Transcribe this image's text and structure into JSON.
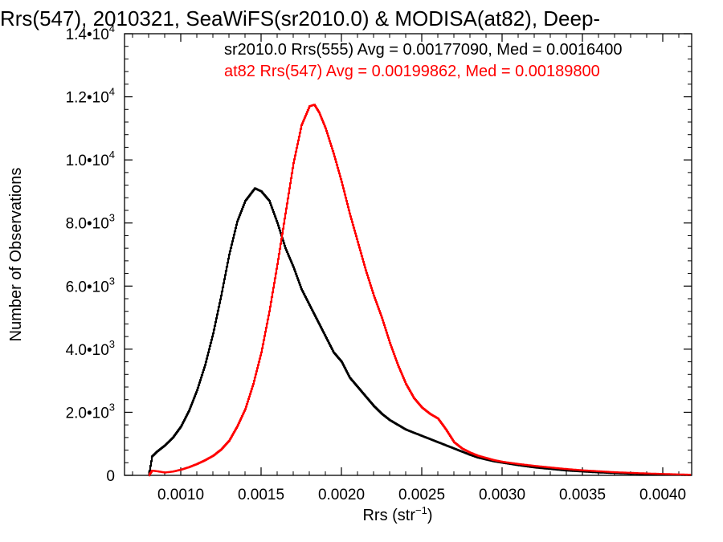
{
  "chart_data": {
    "type": "line",
    "title": "Rrs(547), 2010321, SeaWiFS(sr2010.0) & MODISA(at82), Deep-",
    "xlabel": "Rrs (str",
    "xlabel_sup": "−1",
    "xlabel_close": ")",
    "ylabel": "Number of Observations",
    "xlim": [
      0.00065,
      0.00418
    ],
    "ylim": [
      0,
      14000
    ],
    "xticks": [
      {
        "value": 0.001,
        "label": "0.0010"
      },
      {
        "value": 0.0015,
        "label": "0.0015"
      },
      {
        "value": 0.002,
        "label": "0.0020"
      },
      {
        "value": 0.0025,
        "label": "0.0025"
      },
      {
        "value": 0.003,
        "label": "0.0030"
      },
      {
        "value": 0.0035,
        "label": "0.0035"
      },
      {
        "value": 0.004,
        "label": "0.0040"
      }
    ],
    "yticks": [
      {
        "value": 0,
        "label": "0",
        "exp": ""
      },
      {
        "value": 2000,
        "label": "2.0•10",
        "exp": "3"
      },
      {
        "value": 4000,
        "label": "4.0•10",
        "exp": "3"
      },
      {
        "value": 6000,
        "label": "6.0•10",
        "exp": "3"
      },
      {
        "value": 8000,
        "label": "8.0•10",
        "exp": "3"
      },
      {
        "value": 10000,
        "label": "1.0•10",
        "exp": "4"
      },
      {
        "value": 12000,
        "label": "1.2•10",
        "exp": "4"
      },
      {
        "value": 14000,
        "label": "1.4•10",
        "exp": "4"
      }
    ],
    "grid": false,
    "legend_position": "top-right",
    "series": [
      {
        "name": "sr2010.0 Rrs(555) Avg = 0.00177090, Med = 0.0016400",
        "color": "#000000",
        "points": [
          [
            0.0008,
            0
          ],
          [
            0.00082,
            600
          ],
          [
            0.00085,
            750
          ],
          [
            0.0009,
            950
          ],
          [
            0.00095,
            1200
          ],
          [
            0.001,
            1550
          ],
          [
            0.00105,
            2050
          ],
          [
            0.0011,
            2700
          ],
          [
            0.00115,
            3500
          ],
          [
            0.0012,
            4500
          ],
          [
            0.00125,
            5700
          ],
          [
            0.0013,
            7000
          ],
          [
            0.00135,
            8050
          ],
          [
            0.0014,
            8700
          ],
          [
            0.00143,
            8900
          ],
          [
            0.00146,
            9100
          ],
          [
            0.0015,
            9000
          ],
          [
            0.00155,
            8700
          ],
          [
            0.0016,
            8000
          ],
          [
            0.00165,
            7200
          ],
          [
            0.0017,
            6600
          ],
          [
            0.00175,
            5900
          ],
          [
            0.0018,
            5400
          ],
          [
            0.00185,
            4900
          ],
          [
            0.0019,
            4400
          ],
          [
            0.00195,
            3900
          ],
          [
            0.002,
            3600
          ],
          [
            0.00205,
            3100
          ],
          [
            0.0021,
            2800
          ],
          [
            0.00215,
            2500
          ],
          [
            0.0022,
            2200
          ],
          [
            0.00225,
            1950
          ],
          [
            0.0023,
            1750
          ],
          [
            0.00235,
            1600
          ],
          [
            0.0024,
            1450
          ],
          [
            0.00245,
            1350
          ],
          [
            0.0025,
            1250
          ],
          [
            0.00255,
            1150
          ],
          [
            0.0026,
            1050
          ],
          [
            0.00265,
            950
          ],
          [
            0.0027,
            850
          ],
          [
            0.00275,
            750
          ],
          [
            0.0028,
            650
          ],
          [
            0.00285,
            560
          ],
          [
            0.0029,
            500
          ],
          [
            0.00295,
            440
          ],
          [
            0.003,
            400
          ],
          [
            0.0031,
            320
          ],
          [
            0.0032,
            250
          ],
          [
            0.0033,
            200
          ],
          [
            0.0034,
            150
          ],
          [
            0.0035,
            120
          ],
          [
            0.0036,
            90
          ],
          [
            0.0037,
            70
          ],
          [
            0.0038,
            50
          ],
          [
            0.0039,
            35
          ],
          [
            0.004,
            25
          ],
          [
            0.0041,
            15
          ],
          [
            0.00418,
            10
          ]
        ]
      },
      {
        "name": "at82 Rrs(547) Avg = 0.00199862, Med = 0.00189800",
        "color": "#ff0000",
        "points": [
          [
            0.0008,
            0
          ],
          [
            0.00082,
            150
          ],
          [
            0.00085,
            130
          ],
          [
            0.0009,
            90
          ],
          [
            0.00095,
            120
          ],
          [
            0.001,
            180
          ],
          [
            0.00105,
            260
          ],
          [
            0.0011,
            360
          ],
          [
            0.00115,
            480
          ],
          [
            0.0012,
            620
          ],
          [
            0.00125,
            820
          ],
          [
            0.0013,
            1100
          ],
          [
            0.00135,
            1550
          ],
          [
            0.0014,
            2100
          ],
          [
            0.00145,
            2900
          ],
          [
            0.0015,
            3900
          ],
          [
            0.00155,
            5200
          ],
          [
            0.0016,
            6700
          ],
          [
            0.00165,
            8300
          ],
          [
            0.0017,
            9900
          ],
          [
            0.00175,
            11100
          ],
          [
            0.0018,
            11700
          ],
          [
            0.00183,
            11750
          ],
          [
            0.00186,
            11500
          ],
          [
            0.0019,
            11000
          ],
          [
            0.00195,
            10200
          ],
          [
            0.002,
            9300
          ],
          [
            0.00205,
            8300
          ],
          [
            0.0021,
            7400
          ],
          [
            0.00215,
            6500
          ],
          [
            0.0022,
            5700
          ],
          [
            0.00225,
            5000
          ],
          [
            0.0023,
            4200
          ],
          [
            0.00235,
            3500
          ],
          [
            0.0024,
            2900
          ],
          [
            0.00245,
            2450
          ],
          [
            0.0025,
            2150
          ],
          [
            0.00255,
            1950
          ],
          [
            0.0026,
            1800
          ],
          [
            0.00265,
            1450
          ],
          [
            0.0027,
            1050
          ],
          [
            0.00275,
            850
          ],
          [
            0.0028,
            720
          ],
          [
            0.00285,
            620
          ],
          [
            0.0029,
            550
          ],
          [
            0.00295,
            480
          ],
          [
            0.003,
            430
          ],
          [
            0.0031,
            360
          ],
          [
            0.0032,
            300
          ],
          [
            0.0033,
            250
          ],
          [
            0.0034,
            200
          ],
          [
            0.0035,
            160
          ],
          [
            0.0036,
            130
          ],
          [
            0.0037,
            100
          ],
          [
            0.0038,
            80
          ],
          [
            0.0039,
            60
          ],
          [
            0.004,
            45
          ],
          [
            0.0041,
            30
          ],
          [
            0.00418,
            20
          ]
        ]
      }
    ]
  }
}
